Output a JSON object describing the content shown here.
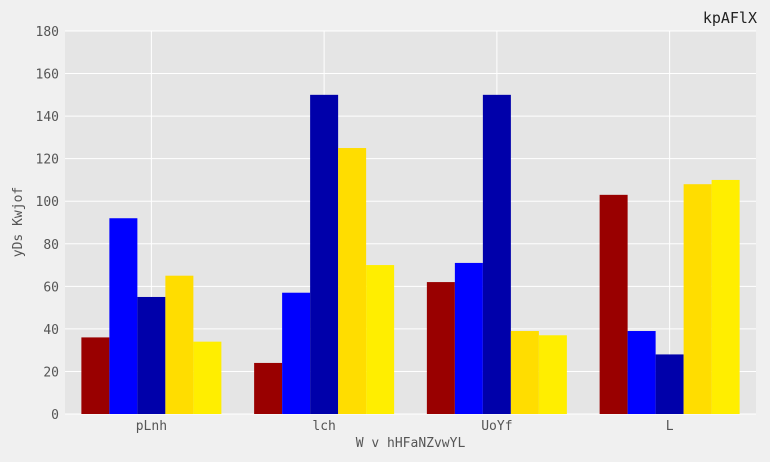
{
  "chart_data": {
    "type": "bar",
    "title": "kpAFlX",
    "xlabel": "W v hHFaNZvwYL",
    "ylabel": "yDs Kwjof",
    "categories": [
      "pLnh",
      "lch",
      "UoYf",
      "L"
    ],
    "ylim": [
      0,
      180
    ],
    "yticks": [
      0,
      20,
      40,
      60,
      80,
      100,
      120,
      140,
      160,
      180
    ],
    "grid": true,
    "series": [
      {
        "color": "#990000",
        "values": [
          36,
          24,
          62,
          103
        ]
      },
      {
        "color": "#0000ff",
        "values": [
          92,
          57,
          71,
          39
        ]
      },
      {
        "color": "#0000aa",
        "values": [
          55,
          150,
          150,
          28
        ]
      },
      {
        "color": "#ffdd00",
        "values": [
          65,
          125,
          39,
          108
        ]
      },
      {
        "color": "#ffee00",
        "values": [
          34,
          70,
          37,
          110
        ]
      }
    ]
  }
}
